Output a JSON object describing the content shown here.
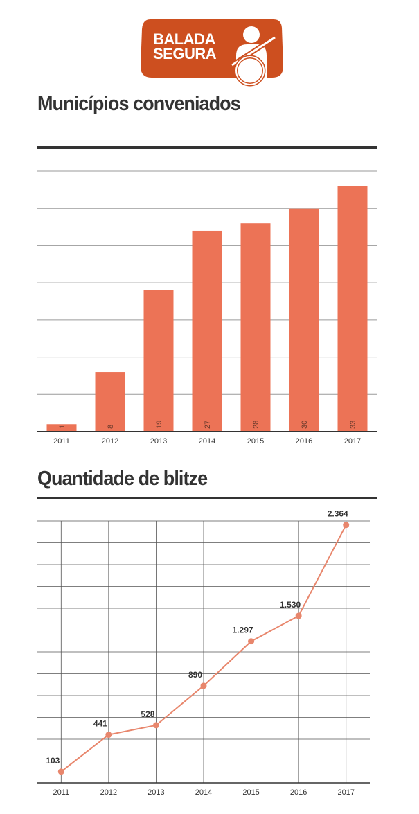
{
  "logo": {
    "line1": "BALADA",
    "line2": "SEGURA",
    "icon": "driver-seatbelt-icon",
    "color": "#cd4f1f"
  },
  "chart_data": [
    {
      "type": "bar",
      "title": "Municípios conveniados",
      "categories": [
        "2011",
        "2012",
        "2013",
        "2014",
        "2015",
        "2016",
        "2017"
      ],
      "values": [
        1,
        8,
        19,
        27,
        28,
        30,
        33
      ],
      "ylim": [
        0,
        35
      ],
      "grid": true,
      "bar_color": "#ec7356"
    },
    {
      "type": "line",
      "title": "Quantidade de blitze",
      "categories": [
        "2011",
        "2012",
        "2013",
        "2014",
        "2015",
        "2016",
        "2017"
      ],
      "values": [
        103,
        441,
        528,
        890,
        1297,
        1530,
        2364
      ],
      "labels": [
        "103",
        "441",
        "528",
        "890",
        "1.297",
        "1.530",
        "2.364"
      ],
      "ylim": [
        0,
        2400
      ],
      "grid": true,
      "line_color": "#e8866c"
    }
  ]
}
